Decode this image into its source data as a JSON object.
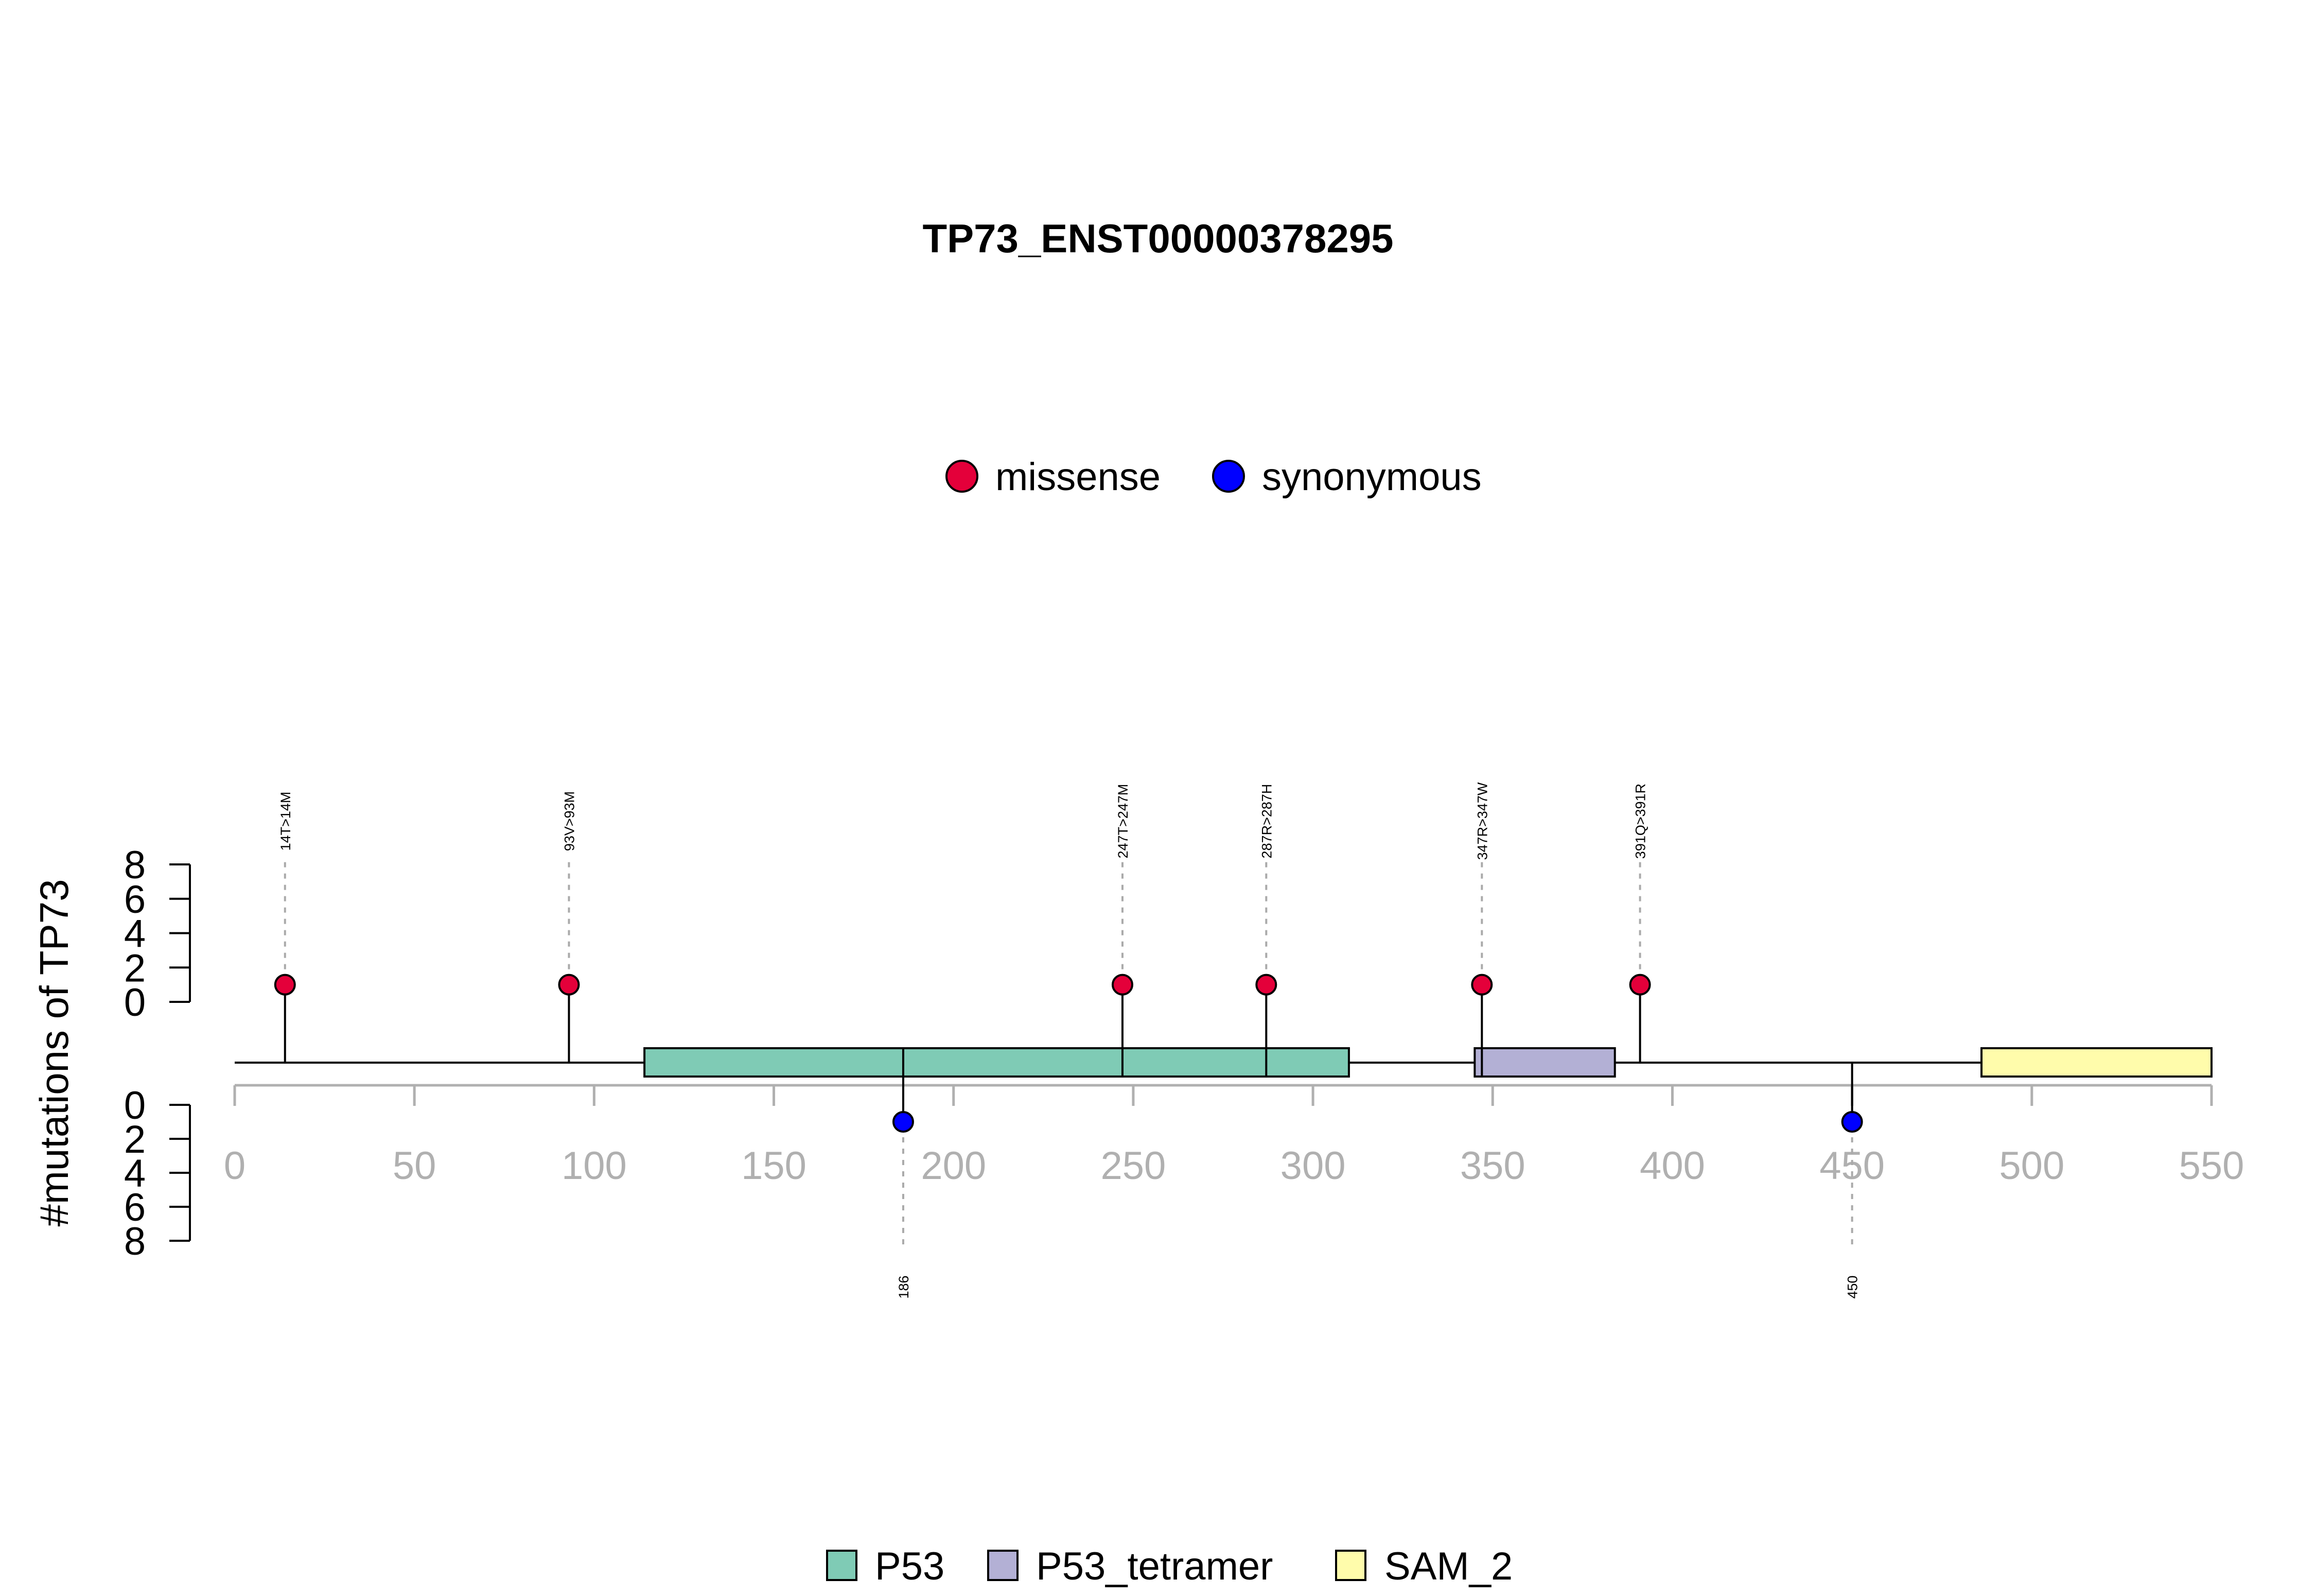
{
  "chart_data": {
    "type": "lollipop",
    "title": "TP73_ENST00000378295",
    "ylabel": "#mutations of TP73",
    "xlim": [
      0,
      550
    ],
    "x_ticks": [
      0,
      50,
      100,
      150,
      200,
      250,
      300,
      350,
      400,
      450,
      500,
      550
    ],
    "y_ticks": [
      0,
      2,
      4,
      6,
      8
    ],
    "ylim": [
      0,
      8
    ],
    "mutation_legend": [
      {
        "label": "missense",
        "color": "#e4003a"
      },
      {
        "label": "synonymous",
        "color": "#0000ff"
      }
    ],
    "mutations": [
      {
        "position": 14,
        "count": 1,
        "type": "missense",
        "label": "14T>14M",
        "side": "top"
      },
      {
        "position": 93,
        "count": 1,
        "type": "missense",
        "label": "93V>93M",
        "side": "top"
      },
      {
        "position": 186,
        "count": 1,
        "type": "synonymous",
        "label": "186",
        "side": "bottom"
      },
      {
        "position": 247,
        "count": 1,
        "type": "missense",
        "label": "247T>247M",
        "side": "top"
      },
      {
        "position": 287,
        "count": 1,
        "type": "missense",
        "label": "287R>287H",
        "side": "top"
      },
      {
        "position": 347,
        "count": 1,
        "type": "missense",
        "label": "347R>347W",
        "side": "top"
      },
      {
        "position": 391,
        "count": 1,
        "type": "missense",
        "label": "391Q>391R",
        "side": "top"
      },
      {
        "position": 450,
        "count": 1,
        "type": "synonymous",
        "label": "450",
        "side": "bottom"
      }
    ],
    "domains": [
      {
        "name": "P53",
        "start": 114,
        "end": 310,
        "color": "#7fcbb5"
      },
      {
        "name": "P53_tetramer",
        "start": 345,
        "end": 384,
        "color": "#b3b0d5"
      },
      {
        "name": "SAM_2",
        "start": 486,
        "end": 550,
        "color": "#fffcab"
      }
    ],
    "protein_length": 550
  }
}
